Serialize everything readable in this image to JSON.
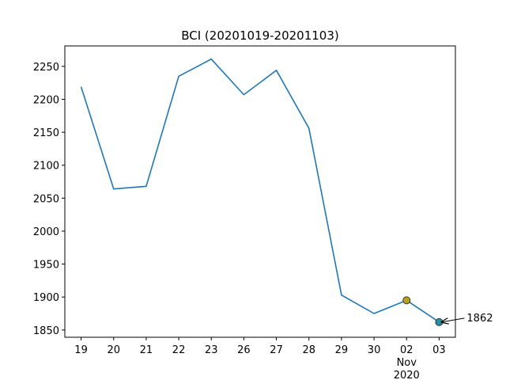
{
  "chart_data": {
    "type": "line",
    "title": "BCI (20201019-20201103)",
    "categories": [
      "19",
      "20",
      "21",
      "22",
      "23",
      "26",
      "27",
      "28",
      "29",
      "30",
      "02\nNov\n2020",
      "03"
    ],
    "series": [
      {
        "color": "#1f77b4",
        "values": [
          2219,
          2064,
          2068,
          2235,
          2261,
          2207,
          2244,
          2156,
          1903,
          1875,
          1895,
          1862
        ]
      }
    ],
    "markers": [
      {
        "color": "#b8a31f",
        "values": [
          null,
          null,
          null,
          null,
          null,
          null,
          null,
          null,
          null,
          null,
          1895,
          null
        ]
      },
      {
        "color": "#2a8fa0",
        "values": [
          null,
          null,
          null,
          null,
          null,
          null,
          null,
          null,
          null,
          null,
          null,
          1862
        ]
      }
    ],
    "ylim": [
      1839,
      2281
    ],
    "yticks": [
      1850,
      1900,
      1950,
      2000,
      2050,
      2100,
      2150,
      2200,
      2250
    ],
    "grid": false
  }
}
